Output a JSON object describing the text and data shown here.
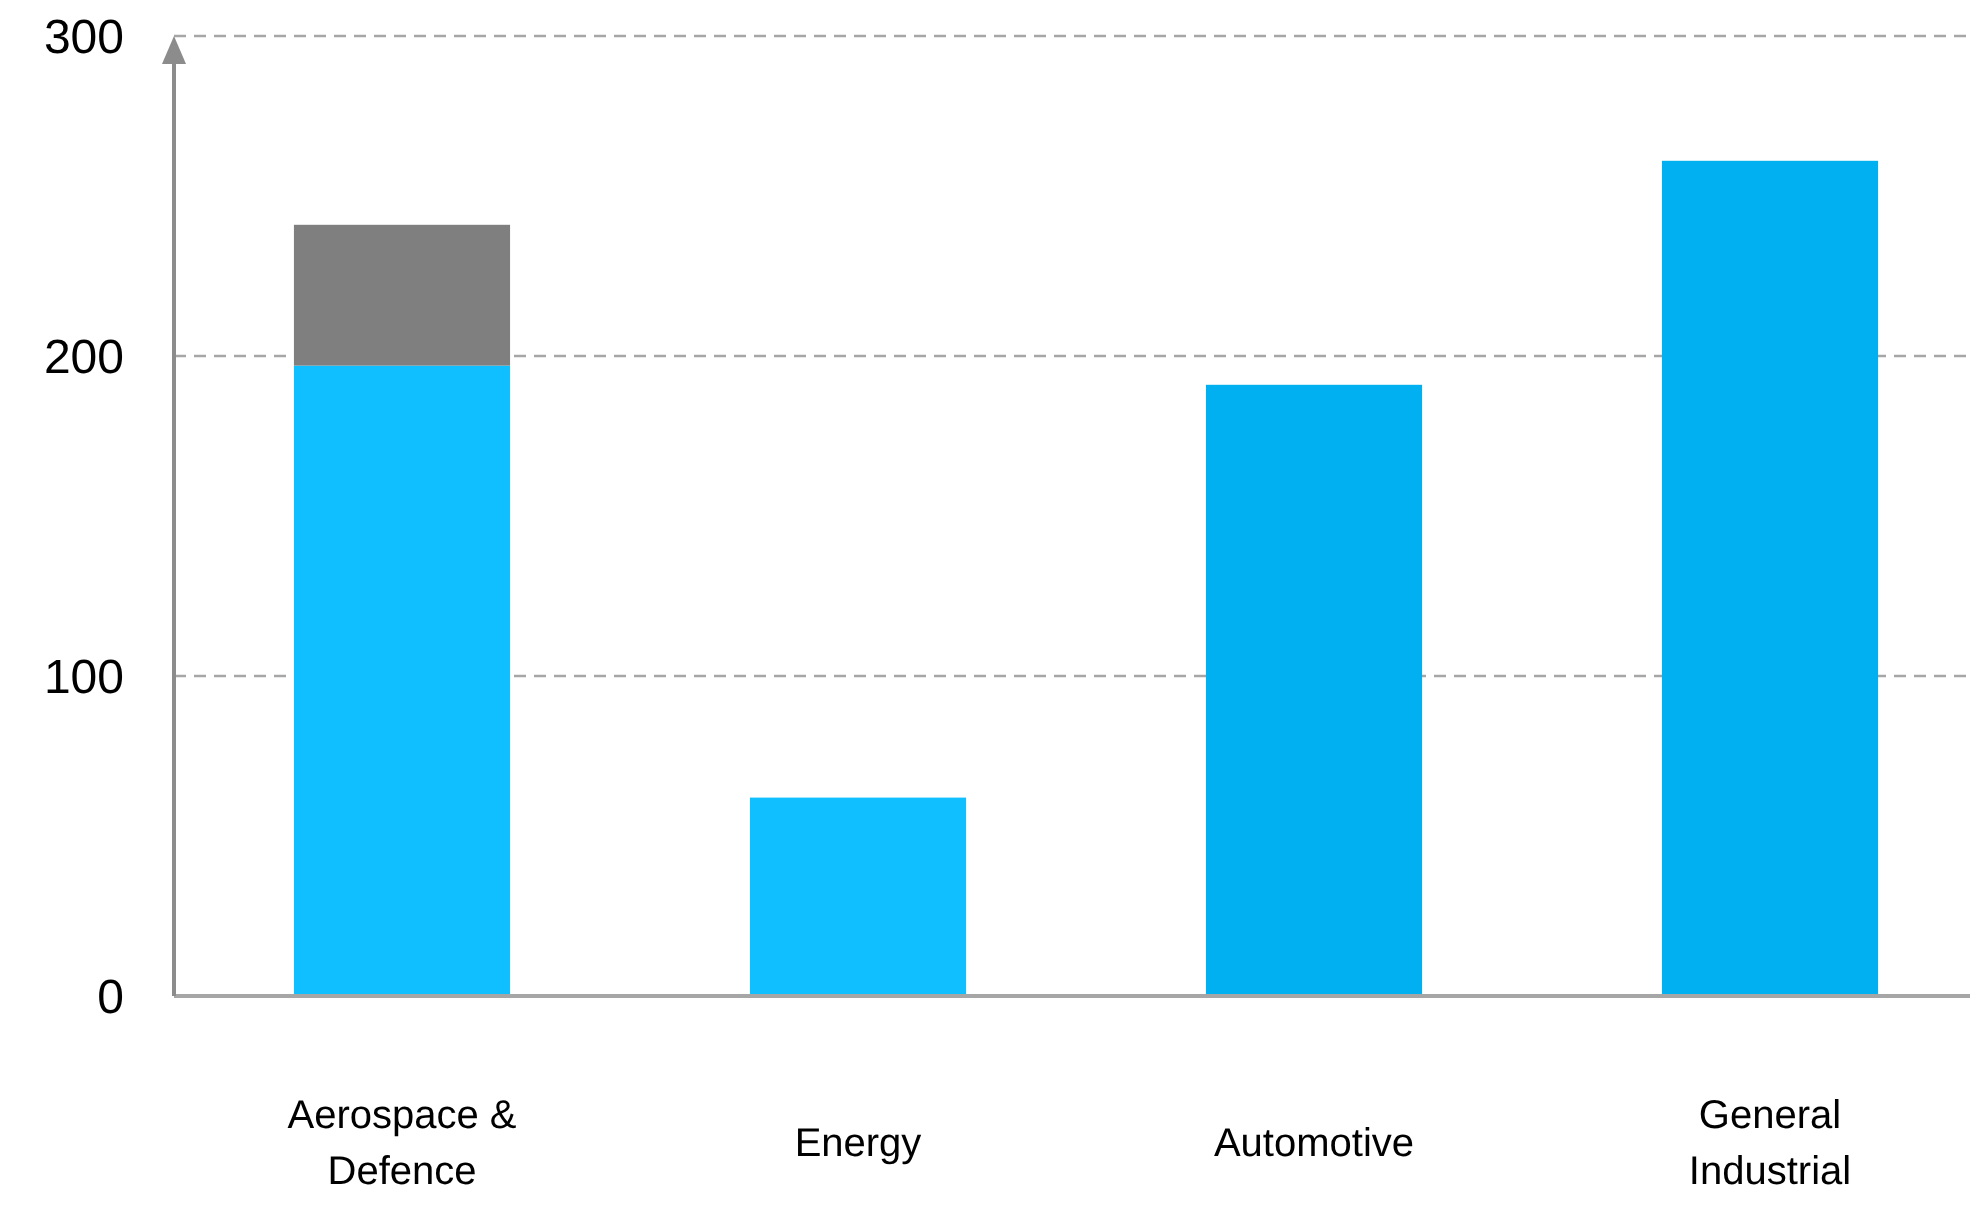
{
  "chart_data": {
    "type": "bar",
    "stacked": true,
    "categories": [
      "Aerospace & Defence",
      "Energy",
      "Automotive",
      "General Industrial"
    ],
    "series": [
      {
        "colors": [
          "#10bfff",
          "#10bfff",
          "#00b0f0",
          "#00b0f0"
        ],
        "values": [
          197,
          62,
          191,
          261
        ]
      },
      {
        "color": "#7f7f7f",
        "values": [
          44,
          null,
          null,
          null
        ]
      }
    ],
    "ylim": [
      0,
      300
    ],
    "yticks": [
      0,
      100,
      200,
      300
    ],
    "grid": "y"
  }
}
